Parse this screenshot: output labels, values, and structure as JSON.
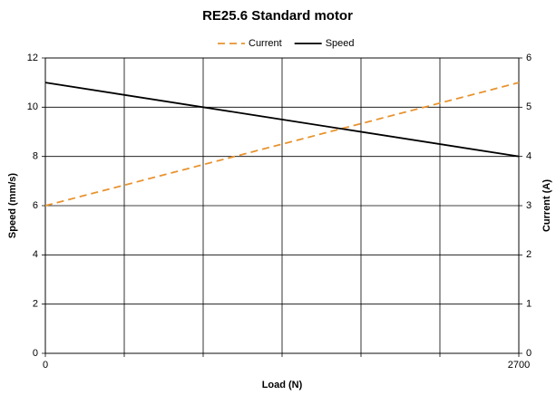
{
  "chart_data": {
    "type": "line",
    "title": "RE25.6 Standard motor",
    "xlabel": "Load (N)",
    "ylabel": "Speed (mm/s)",
    "y2label": "Current (A)",
    "x": [
      0,
      2700
    ],
    "xlim": [
      0,
      2700
    ],
    "xticks": [
      0,
      2700
    ],
    "xgridlines": [
      450,
      900,
      1350,
      1800,
      2250
    ],
    "ylim": [
      0,
      12
    ],
    "yticks": [
      0,
      2,
      4,
      6,
      8,
      10,
      12
    ],
    "y2lim": [
      0,
      6
    ],
    "y2ticks": [
      0,
      1,
      2,
      3,
      4,
      5,
      6
    ],
    "grid": true,
    "legend": "top",
    "series": [
      {
        "name": "Current",
        "color": "#e8932f",
        "dashed": true,
        "axis": "y2",
        "values": [
          3,
          5.5
        ]
      },
      {
        "name": "Speed",
        "color": "#000000",
        "dashed": false,
        "values": [
          11,
          8
        ]
      }
    ]
  }
}
